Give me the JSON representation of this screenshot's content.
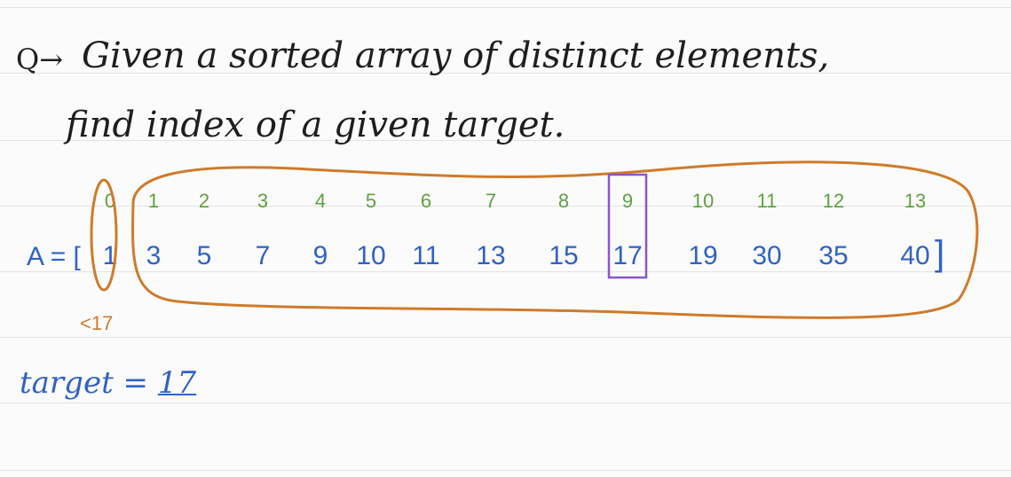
{
  "question": {
    "prefix": "Q→",
    "line1": "Given a sorted array of distinct elements,",
    "line2": "find index of a given target."
  },
  "array": {
    "label": "A = [",
    "close_bracket": "]",
    "indices": [
      "0",
      "1",
      "2",
      "3",
      "4",
      "5",
      "6",
      "7",
      "8",
      "9",
      "10",
      "11",
      "12",
      "13"
    ],
    "values": [
      "1",
      "3",
      "5",
      "7",
      "9",
      "10",
      "11",
      "13",
      "15",
      "17",
      "19",
      "30",
      "35",
      "40"
    ],
    "highlight_index": 9
  },
  "annotation": {
    "note": "<17"
  },
  "target": {
    "label": "target = ",
    "value": "17"
  },
  "colors": {
    "ink": "#1e1e1e",
    "blue": "#2f62c6",
    "green": "#5fa140",
    "orange": "#d07a2a",
    "purple": "#8a57c9",
    "rule": "#e3e3e3"
  }
}
